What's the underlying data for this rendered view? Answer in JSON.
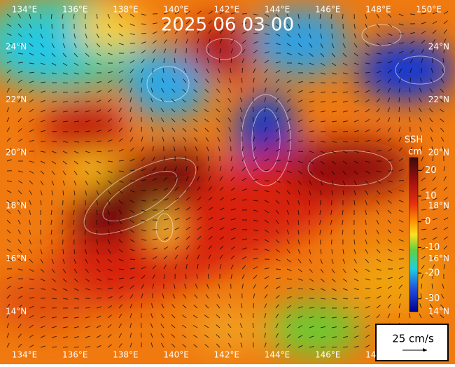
{
  "title": "2025 06 03 00",
  "lon_labels": [
    "134°E",
    "136°E",
    "138°E",
    "140°E",
    "142°E",
    "144°E",
    "146°E",
    "148°E",
    "150°E"
  ],
  "lat_labels": [
    "24°N",
    "22°N",
    "20°N",
    "18°N",
    "16°N",
    "14°N"
  ],
  "colorbar": {
    "label": "SSH",
    "unit": "cm",
    "ticks": [
      20,
      10,
      0,
      -10,
      -20,
      -30
    ],
    "lim": [
      -35,
      25
    ]
  },
  "scale_label": "25 cm/s"
}
